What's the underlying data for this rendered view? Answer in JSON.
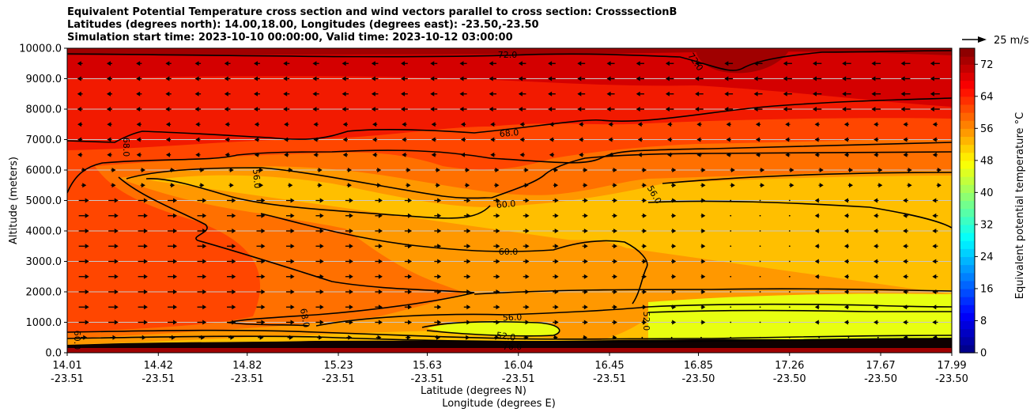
{
  "chart_data": {
    "type": "heatmap",
    "title_lines": [
      "Equivalent Potential Temperature cross section and wind vectors parallel to cross section: CrosssectionB",
      "Latitudes (degrees north): 14.00,18.00, Longitudes (degrees east): -23.50,-23.50",
      "Simulation start time: 2023-10-10 00:00:00, Valid time: 2023-10-12 03:00:00"
    ],
    "ylabel": "Altitude (meters)",
    "xlabel_lat": "Latitude (degrees N)",
    "xlabel_lon": "Longitude (degrees E)",
    "ylim": [
      0,
      10000
    ],
    "yticks": [
      "0.0",
      "1000.0",
      "2000.0",
      "3000.0",
      "4000.0",
      "5000.0",
      "6000.0",
      "7000.0",
      "8000.0",
      "9000.0",
      "10000.0"
    ],
    "xticks_lat": [
      "14.01",
      "14.42",
      "14.82",
      "15.23",
      "15.63",
      "16.04",
      "16.45",
      "16.85",
      "17.26",
      "17.67",
      "17.99"
    ],
    "xticks_lon": [
      "-23.51",
      "-23.51",
      "-23.51",
      "-23.51",
      "-23.51",
      "-23.51",
      "-23.51",
      "-23.50",
      "-23.50",
      "-23.50",
      "-23.50"
    ],
    "grid": "horizontal",
    "colorbar": {
      "label": "Equivalent potential temperature °C",
      "ticks": [
        "0",
        "8",
        "16",
        "24",
        "32",
        "40",
        "48",
        "56",
        "64",
        "72"
      ],
      "range": [
        0,
        76
      ]
    },
    "quiver_key": "25 m/s",
    "contour_labels": [
      "72.0",
      "72.0",
      "68.0",
      "68.0",
      "56.0",
      "60.0",
      "60.0",
      "56.0",
      "56.0",
      "52.0",
      "52.0",
      "68.0",
      "76.0",
      "60.0"
    ],
    "wind_notes": "Westerly winds below about 5500 m, easterly winds above about 7500 m",
    "colors": {
      "very_high": "#a00000",
      "high": "#d40000",
      "upper": "#f21a00",
      "mid_high": "#ff4600",
      "mid": "#ff7000",
      "mid_low": "#ff9800",
      "low": "#ffbf00",
      "lowest": "#e8ff10",
      "ground": "#0d0000"
    }
  }
}
